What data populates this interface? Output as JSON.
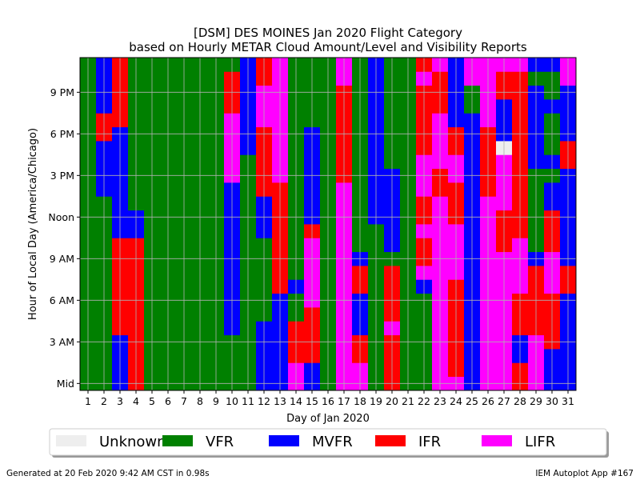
{
  "chart_data": {
    "type": "heatmap",
    "title": "[DSM] DES MOINES Jan 2020 Flight Category",
    "subtitle": "based on Hourly METAR Cloud Amount/Level and Visibility Reports",
    "xlabel": "Day of Jan 2020",
    "ylabel": "Hour of Local Day (America/Chicago)",
    "x_ticks": [
      "1",
      "2",
      "3",
      "4",
      "5",
      "6",
      "7",
      "8",
      "9",
      "10",
      "11",
      "12",
      "13",
      "14",
      "15",
      "16",
      "17",
      "18",
      "19",
      "20",
      "21",
      "22",
      "23",
      "24",
      "25",
      "26",
      "27",
      "28",
      "29",
      "30",
      "31"
    ],
    "y_ticks": [
      {
        "hour": 0,
        "label": "Mid"
      },
      {
        "hour": 3,
        "label": "3 AM"
      },
      {
        "hour": 6,
        "label": "6 AM"
      },
      {
        "hour": 9,
        "label": "9 AM"
      },
      {
        "hour": 12,
        "label": "Noon"
      },
      {
        "hour": 15,
        "label": "3 PM"
      },
      {
        "hour": 18,
        "label": "6 PM"
      },
      {
        "hour": 21,
        "label": "9 PM"
      }
    ],
    "xlim": [
      0.5,
      31.5
    ],
    "ylim": [
      -0.5,
      23.5
    ],
    "grid": true,
    "legend_position": "bottom",
    "categories": [
      {
        "code": "U",
        "name": "Unknown",
        "color": "#eeeeee"
      },
      {
        "code": "V",
        "name": "VFR",
        "color": "#008000"
      },
      {
        "code": "M",
        "name": "MVFR",
        "color": "#0000ff"
      },
      {
        "code": "I",
        "name": "IFR",
        "color": "#ff0000"
      },
      {
        "code": "L",
        "name": "LIFR",
        "color": "#ff00ff"
      }
    ],
    "encoding_note": "days[d] is a 24-char string for day d+1; character h is the category code for hour h (0 = midnight, 23 = 11 PM)",
    "days": [
      "VVVVVVVVVVVVVVVVVVVVVVVV",
      "VVVVVVVVVVVVVVMMMMIIMMMM",
      "MMMMIIIIIIIMMMMMMMMIIIII",
      "IIIIIIIIIIIMMVVVVVVVVVVV",
      "VVVVVVVVVVVVVVVVVVVVVVVV",
      "VVVVVVVVVVVVVVVVVVVVVVVV",
      "VVVVVVVVVVVVVVVVVVVVVVVV",
      "VVVVVVVVVVVVVVVVVVVVVVVV",
      "VVVVVVVVVVVVVVVVVVVVVVVV",
      "VVVVMMMMMMMMMMMLLLLLIIIV",
      "VVVVVVVVVVVVVVVVVMMMMMMM",
      "MMMMMVVVVVVMMMIIIIILLLII",
      "MMMMMMMIIIIIIIILLLLLLLLL",
      "LLIIIVVMVVVVVVVVVVVVVVVV",
      "MMIIIILLLLLIMMMMMMMVVVVV",
      "VVVVVVVVVVVVVVVVVVVVVVVV",
      "LLLLLLLLLLLLLLLIIIIIIILL",
      "LLIIMMMIIMVVVVVVVVVVVVVV",
      "VVVVVVVVVVVVMMMMMMMMMMMM",
      "IIIILIIIIVMMMMMMVVVVVVVV",
      "VVVVVVVVVVVVVVVVVVVVVVVV",
      "VVVVVVVMLIILIILLLIIIIILI",
      "LLLLLLLLLLLLLLIILLLLIIIL",
      "LIIIIIIILLLLIIILLIIMMMMM",
      "MMMMMMMMMMMMMMMMMMMMVVLL",
      "LLLLLLLLLLLLLLIIIIILLLLL",
      "LLLLLLLLLLIIILLLLUMMMIIL",
      "IIMMIIILLLLIIIIIIIIIIIIL",
      "LLLLIIIIIMVVVVVVMMMMMMVM",
      "MMMIIIILLLIIIMMVMVVVMVVM",
      "MMMMMMMIIMMMMMMMIIMMMMLL"
    ]
  },
  "footer": {
    "left": "Generated at 20 Feb 2020 9:42 AM CST in 0.98s",
    "right": "IEM Autoplot App #167"
  }
}
